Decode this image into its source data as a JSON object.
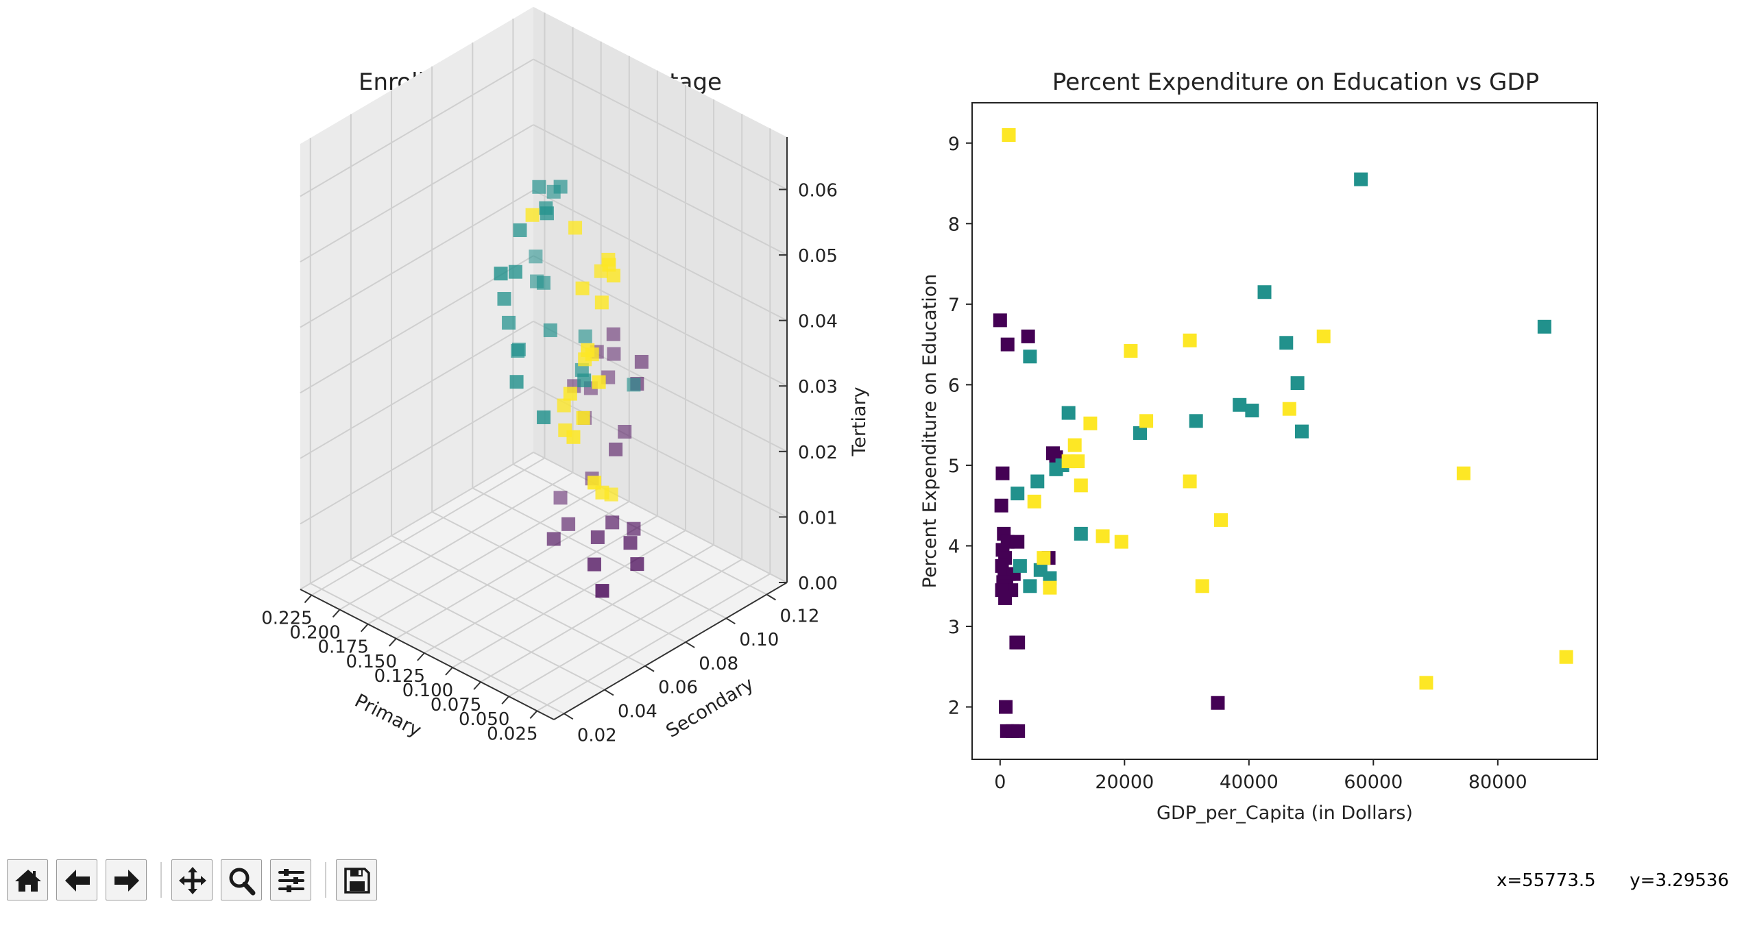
{
  "toolbar": {
    "buttons": [
      {
        "name": "home-button",
        "icon": "home-icon"
      },
      {
        "name": "back-button",
        "icon": "arrow-left-icon"
      },
      {
        "name": "forward-button",
        "icon": "arrow-right-icon"
      },
      {
        "name": "pan-button",
        "icon": "move-icon"
      },
      {
        "name": "zoom-button",
        "icon": "magnifier-icon"
      },
      {
        "name": "configure-subplots-button",
        "icon": "sliders-icon"
      },
      {
        "name": "save-button",
        "icon": "floppy-disk-icon"
      }
    ],
    "coord_x": "x=55773.5",
    "coord_y": "y=3.29536"
  },
  "chart_data": [
    {
      "type": "scatter",
      "projection": "3d",
      "title": "Enrolled Population Percentage",
      "xlabel": "Primary",
      "ylabel": "Secondary",
      "zlabel": "Tertiary",
      "xlim": [
        0.01,
        0.235
      ],
      "ylim": [
        0.015,
        0.13
      ],
      "zlim": [
        0.0,
        0.068
      ],
      "xticks": [
        "0.025",
        "0.050",
        "0.075",
        "0.100",
        "0.125",
        "0.150",
        "0.175",
        "0.200",
        "0.225"
      ],
      "yticks": [
        "0.02",
        "0.04",
        "0.06",
        "0.08",
        "0.10",
        "0.12"
      ],
      "zticks": [
        "0.00",
        "0.01",
        "0.02",
        "0.03",
        "0.04",
        "0.05",
        "0.06"
      ],
      "marker": "square",
      "colors": [
        "#440154",
        "#21918c",
        "#fde725"
      ],
      "grid": true,
      "series": [
        {
          "color": "#440154",
          "points": [
            [
              0.075,
              0.075,
              0.003
            ],
            [
              0.08,
              0.095,
              0.003
            ],
            [
              0.095,
              0.1,
              0.004
            ],
            [
              0.11,
              0.11,
              0.003
            ],
            [
              0.12,
              0.105,
              0.004
            ],
            [
              0.115,
              0.095,
              0.004
            ],
            [
              0.1,
              0.085,
              0.003
            ],
            [
              0.145,
              0.09,
              0.002
            ],
            [
              0.15,
              0.1,
              0.002
            ],
            [
              0.165,
              0.12,
              0.004
            ],
            [
              0.175,
              0.11,
              0.002
            ],
            [
              0.135,
              0.115,
              0.012
            ],
            [
              0.145,
              0.125,
              0.012
            ],
            [
              0.175,
              0.122,
              0.012
            ],
            [
              0.125,
              0.12,
              0.022
            ],
            [
              0.13,
              0.125,
              0.024
            ],
            [
              0.155,
              0.125,
              0.026
            ],
            [
              0.16,
              0.128,
              0.022
            ],
            [
              0.165,
              0.128,
              0.018
            ],
            [
              0.175,
              0.125,
              0.016
            ],
            [
              0.19,
              0.125,
              0.015
            ],
            [
              0.175,
              0.128,
              0.021
            ]
          ]
        },
        {
          "color": "#21918c",
          "points": [
            [
              0.12,
              0.05,
              0.052
            ],
            [
              0.125,
              0.06,
              0.05
            ],
            [
              0.13,
              0.065,
              0.055
            ],
            [
              0.115,
              0.07,
              0.058
            ],
            [
              0.125,
              0.075,
              0.057
            ],
            [
              0.13,
              0.085,
              0.058
            ],
            [
              0.14,
              0.08,
              0.058
            ],
            [
              0.145,
              0.09,
              0.055
            ],
            [
              0.135,
              0.06,
              0.045
            ],
            [
              0.14,
              0.065,
              0.04
            ],
            [
              0.14,
              0.07,
              0.035
            ],
            [
              0.15,
              0.075,
              0.033
            ],
            [
              0.13,
              0.08,
              0.037
            ],
            [
              0.145,
              0.085,
              0.042
            ],
            [
              0.16,
              0.09,
              0.04
            ],
            [
              0.17,
              0.095,
              0.042
            ],
            [
              0.12,
              0.09,
              0.03
            ],
            [
              0.1,
              0.08,
              0.032
            ],
            [
              0.115,
              0.055,
              0.035
            ],
            [
              0.1,
              0.06,
              0.03
            ],
            [
              0.135,
              0.1,
              0.032
            ],
            [
              0.11,
              0.11,
              0.025
            ]
          ]
        },
        {
          "color": "#fde725",
          "points": [
            [
              0.06,
              0.07,
              0.055
            ],
            [
              0.065,
              0.075,
              0.052
            ],
            [
              0.07,
              0.072,
              0.048
            ],
            [
              0.075,
              0.078,
              0.053
            ],
            [
              0.08,
              0.068,
              0.05
            ],
            [
              0.09,
              0.07,
              0.058
            ],
            [
              0.085,
              0.08,
              0.05
            ],
            [
              0.07,
              0.065,
              0.042
            ],
            [
              0.075,
              0.07,
              0.04
            ],
            [
              0.085,
              0.072,
              0.038
            ],
            [
              0.08,
              0.062,
              0.035
            ],
            [
              0.06,
              0.065,
              0.038
            ],
            [
              0.065,
              0.06,
              0.033
            ],
            [
              0.07,
              0.058,
              0.03
            ],
            [
              0.09,
              0.065,
              0.028
            ],
            [
              0.1,
              0.07,
              0.03
            ],
            [
              0.055,
              0.06,
              0.024
            ],
            [
              0.075,
              0.075,
              0.018
            ],
            [
              0.085,
              0.085,
              0.015
            ],
            [
              0.11,
              0.06,
              0.06
            ]
          ]
        }
      ]
    },
    {
      "type": "scatter",
      "title": "Percent Expenditure on Education vs GDP",
      "xlabel": "GDP_per_Capita (in Dollars)",
      "ylabel": "Percent Expenditure on Education",
      "xlim": [
        -4500,
        96000
      ],
      "ylim": [
        1.35,
        9.5
      ],
      "xticks": [
        0,
        20000,
        40000,
        60000,
        80000
      ],
      "yticks": [
        2,
        3,
        4,
        5,
        6,
        7,
        8,
        9
      ],
      "marker": "square",
      "grid": false,
      "series": [
        {
          "color": "#440154",
          "points": [
            [
              0,
              6.8
            ],
            [
              1200,
              6.5
            ],
            [
              4500,
              6.6
            ],
            [
              400,
              4.9
            ],
            [
              200,
              4.5
            ],
            [
              9000,
              5.1
            ],
            [
              8500,
              5.15
            ],
            [
              600,
              4.15
            ],
            [
              1200,
              4.05
            ],
            [
              2800,
              4.05
            ],
            [
              400,
              3.95
            ],
            [
              800,
              3.85
            ],
            [
              7800,
              3.85
            ],
            [
              300,
              3.75
            ],
            [
              700,
              3.65
            ],
            [
              1400,
              3.65
            ],
            [
              2200,
              3.65
            ],
            [
              500,
              3.55
            ],
            [
              1000,
              3.5
            ],
            [
              1800,
              3.45
            ],
            [
              300,
              3.45
            ],
            [
              800,
              3.35
            ],
            [
              2600,
              2.8
            ],
            [
              2900,
              2.8
            ],
            [
              900,
              2.0
            ],
            [
              1100,
              1.7
            ],
            [
              2000,
              1.7
            ],
            [
              2900,
              1.7
            ],
            [
              35000,
              2.05
            ]
          ]
        },
        {
          "color": "#21918c",
          "points": [
            [
              58000,
              8.55
            ],
            [
              42500,
              7.15
            ],
            [
              87500,
              6.72
            ],
            [
              46000,
              6.52
            ],
            [
              47800,
              6.02
            ],
            [
              38500,
              5.75
            ],
            [
              40500,
              5.68
            ],
            [
              48500,
              5.42
            ],
            [
              31500,
              5.55
            ],
            [
              22500,
              5.4
            ],
            [
              11000,
              5.65
            ],
            [
              4800,
              6.35
            ],
            [
              10000,
              5.0
            ],
            [
              9000,
              4.95
            ],
            [
              6000,
              4.8
            ],
            [
              2800,
              4.65
            ],
            [
              13000,
              4.15
            ],
            [
              3200,
              3.75
            ],
            [
              6500,
              3.7
            ],
            [
              8000,
              3.6
            ],
            [
              4800,
              3.5
            ]
          ]
        },
        {
          "color": "#fde725",
          "points": [
            [
              1400,
              9.1
            ],
            [
              52000,
              6.6
            ],
            [
              30500,
              6.55
            ],
            [
              21000,
              6.42
            ],
            [
              46500,
              5.7
            ],
            [
              14500,
              5.52
            ],
            [
              23500,
              5.55
            ],
            [
              12000,
              5.25
            ],
            [
              11000,
              5.05
            ],
            [
              12500,
              5.05
            ],
            [
              74500,
              4.9
            ],
            [
              30500,
              4.8
            ],
            [
              13000,
              4.75
            ],
            [
              5500,
              4.55
            ],
            [
              35500,
              4.32
            ],
            [
              16500,
              4.12
            ],
            [
              19500,
              4.05
            ],
            [
              7000,
              3.85
            ],
            [
              32500,
              3.5
            ],
            [
              8000,
              3.48
            ],
            [
              91000,
              2.62
            ],
            [
              68500,
              2.3
            ]
          ]
        }
      ]
    }
  ]
}
